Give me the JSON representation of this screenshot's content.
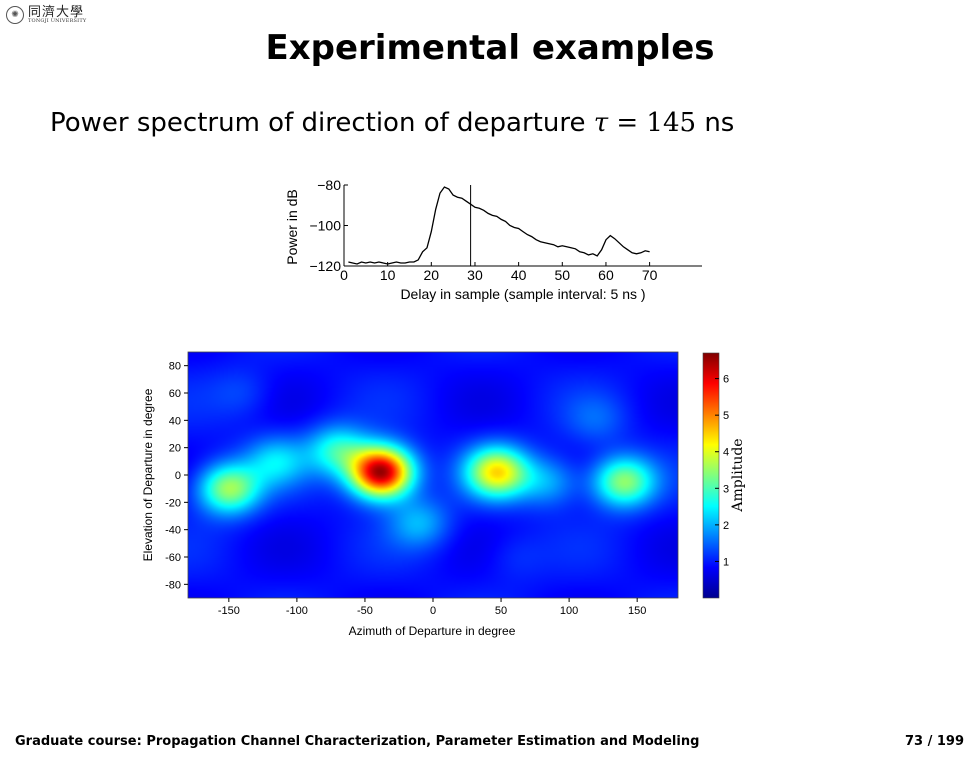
{
  "header": {
    "logo_cn": "同濟大學",
    "logo_en": "TONGJI UNIVERSITY"
  },
  "slide": {
    "title": "Experimental examples",
    "subtitle_text": "Power spectrum of direction of departure",
    "subtitle_symbol": "τ",
    "subtitle_eq": "=",
    "subtitle_value": "145",
    "subtitle_unit": "ns"
  },
  "footer": {
    "course": "Graduate course: Propagation Channel Characterization, Parameter Estimation and Modeling",
    "page": "73 / 199"
  },
  "chart_data": [
    {
      "type": "line",
      "xlabel": "Delay in sample (sample interval: 5 ns )",
      "ylabel": "Power in dB",
      "xlim": [
        0,
        82
      ],
      "ylim": [
        -120,
        -80
      ],
      "xticks": [
        0,
        10,
        20,
        30,
        40,
        50,
        60,
        70
      ],
      "yticks": [
        -120,
        -100,
        -80
      ],
      "ytick_labels": [
        "−120",
        "−100",
        "−80"
      ],
      "marker_line_x": 29,
      "x": [
        1,
        2,
        3,
        4,
        5,
        6,
        7,
        8,
        9,
        10,
        11,
        12,
        13,
        14,
        15,
        16,
        17,
        18,
        19,
        20,
        21,
        22,
        23,
        24,
        25,
        26,
        27,
        28,
        29,
        30,
        31,
        32,
        33,
        34,
        35,
        36,
        37,
        38,
        39,
        40,
        41,
        42,
        43,
        44,
        45,
        46,
        47,
        48,
        49,
        50,
        51,
        52,
        53,
        54,
        55,
        56,
        57,
        58,
        59,
        60,
        61,
        62,
        63,
        64,
        65,
        66,
        67,
        68,
        69,
        70
      ],
      "y": [
        -118,
        -118.5,
        -119,
        -118,
        -118.5,
        -118,
        -118.5,
        -118,
        -118.5,
        -119,
        -118.5,
        -118,
        -118.5,
        -118.5,
        -118,
        -118,
        -117,
        -113,
        -111,
        -103,
        -92,
        -84,
        -81,
        -82,
        -85,
        -86,
        -86.5,
        -88,
        -89.5,
        -91,
        -91.5,
        -92.5,
        -94,
        -95,
        -95.5,
        -97,
        -98,
        -100,
        -101,
        -101.5,
        -103,
        -104.5,
        -105.5,
        -107,
        -108,
        -108.5,
        -109,
        -109.5,
        -110.5,
        -110,
        -110.5,
        -111,
        -111.5,
        -113,
        -113.5,
        -114.5,
        -114,
        -115,
        -112,
        -107,
        -105,
        -106.5,
        -108.5,
        -110.5,
        -112,
        -113.5,
        -114,
        -113.5,
        -112.5,
        -113
      ]
    },
    {
      "type": "heatmap",
      "xlabel": "Azimuth of Departure in degree",
      "ylabel": "Elevation of Departure in degree",
      "colorbar_label": "Amplitude",
      "xlim": [
        -180,
        180
      ],
      "ylim": [
        -90,
        90
      ],
      "xticks": [
        -150,
        -100,
        -50,
        0,
        50,
        100,
        150
      ],
      "yticks": [
        80,
        60,
        40,
        20,
        0,
        -20,
        -40,
        -60,
        -80
      ],
      "colorbar_range": [
        0,
        6.7
      ],
      "colorbar_ticks": [
        1,
        2,
        3,
        4,
        5,
        6
      ],
      "colormap": "jet",
      "background_level": 0.9,
      "peaks": [
        {
          "azimuth": -38,
          "elevation": 2,
          "amplitude": 6.7
        },
        {
          "azimuth": -150,
          "elevation": -10,
          "amplitude": 3.6
        },
        {
          "azimuth": 47,
          "elevation": 2,
          "amplitude": 4.2
        },
        {
          "azimuth": 140,
          "elevation": -5,
          "amplitude": 3.5
        },
        {
          "azimuth": -70,
          "elevation": 18,
          "amplitude": 2.7
        },
        {
          "azimuth": -115,
          "elevation": 10,
          "amplitude": 2.2
        },
        {
          "azimuth": -10,
          "elevation": -35,
          "amplitude": 2.0
        },
        {
          "azimuth": 85,
          "elevation": -5,
          "amplitude": 2.0
        },
        {
          "azimuth": 120,
          "elevation": 40,
          "amplitude": 1.4
        },
        {
          "azimuth": -140,
          "elevation": 60,
          "amplitude": 1.3
        },
        {
          "azimuth": 60,
          "elevation": -60,
          "amplitude": 1.2
        }
      ]
    }
  ]
}
